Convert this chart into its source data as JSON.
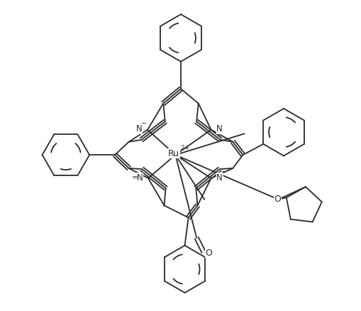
{
  "background_color": "#ffffff",
  "line_color": "#2a2a2a",
  "line_width": 1.3,
  "figsize": [
    5.1,
    4.38
  ],
  "dpi": 100,
  "xlim": [
    -5.8,
    5.8
  ],
  "ylim": [
    -5.0,
    5.2
  ]
}
